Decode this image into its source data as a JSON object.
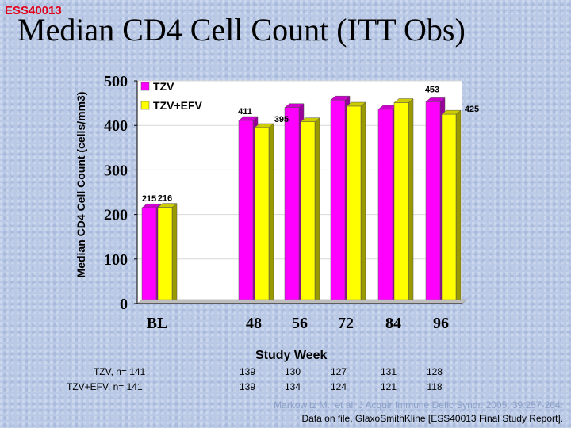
{
  "header": {
    "code": "ESS40013",
    "title": "Median CD4 Cell Count (ITT Obs)"
  },
  "chart_data": {
    "type": "bar",
    "title": "Median CD4 Cell Count (ITT Obs)",
    "xlabel": "Study Week",
    "ylabel": "Median CD4 Cell Count (cells/mm3)",
    "ylim": [
      0,
      500
    ],
    "yticks": [
      "0",
      "100",
      "200",
      "300",
      "400",
      "500"
    ],
    "categories": [
      "BL",
      "48",
      "56",
      "72",
      "84",
      "96"
    ],
    "series": [
      {
        "name": "TZV",
        "color": "#ff00ff",
        "values": [
          215,
          411,
          440,
          457,
          436,
          453
        ],
        "labels": [
          "215",
          "411",
          "",
          "",
          "",
          "453"
        ]
      },
      {
        "name": "TZV+EFV",
        "color": "#ffff00",
        "values": [
          216,
          395,
          408,
          443,
          451,
          425
        ],
        "labels": [
          "216",
          "395",
          "",
          "",
          "",
          "425"
        ]
      }
    ],
    "legend": "top-left"
  },
  "n_table": {
    "rows": [
      {
        "label": "TZV, n= 141",
        "values": [
          "139",
          "130",
          "127",
          "131",
          "128"
        ]
      },
      {
        "label": "TZV+EFV, n= 141",
        "values": [
          "139",
          "134",
          "124",
          "121",
          "118"
        ]
      }
    ]
  },
  "citation": {
    "line1": "Markowitz M., et al. J Acquir Immune Defic Syndr. 2005; 39:257-264.",
    "line2": "Data on file, GlaxoSmithKline [ESS40013 Final Study Report]."
  }
}
